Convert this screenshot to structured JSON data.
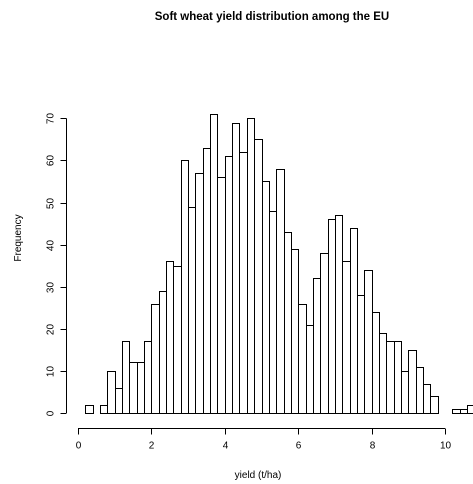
{
  "chart_data": {
    "type": "bar",
    "title": "Soft wheat yield distribution among the EU",
    "xlabel": "yield (t/ha)",
    "ylabel": "Frequency",
    "bin_width": 0.2,
    "bin_start": 0.2,
    "values": [
      2,
      0,
      2,
      10,
      6,
      17,
      12,
      12,
      17,
      26,
      29,
      36,
      35,
      60,
      49,
      57,
      63,
      71,
      56,
      61,
      69,
      62,
      70,
      65,
      55,
      48,
      58,
      43,
      39,
      26,
      21,
      32,
      38,
      46,
      47,
      36,
      44,
      28,
      34,
      24,
      19,
      17,
      17,
      10,
      15,
      11,
      7,
      4,
      0,
      0,
      1,
      1,
      2
    ],
    "xlim": [
      0,
      10.75
    ],
    "ylim": [
      0,
      72
    ],
    "xticks": [
      "0",
      "2",
      "4",
      "6",
      "8",
      "10"
    ],
    "yticks": [
      "0",
      "10",
      "20",
      "30",
      "40",
      "50",
      "60",
      "70"
    ],
    "grid": false,
    "colors": {
      "bar_fill": "#ffffff",
      "bar_stroke": "#000000"
    }
  }
}
